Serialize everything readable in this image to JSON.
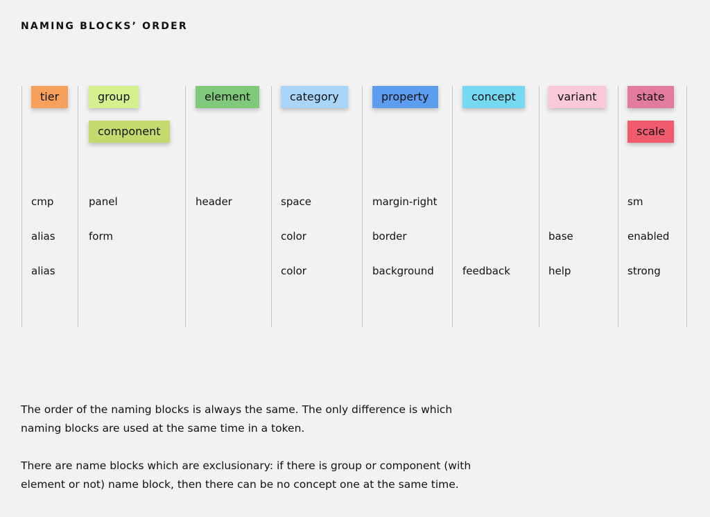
{
  "title": "NAMING BLOCKS’ ORDER",
  "columns": [
    {
      "tags": [
        {
          "label": "tier",
          "color": "#f7a05c"
        }
      ],
      "cells": [
        "cmp",
        "alias",
        "alias"
      ]
    },
    {
      "tags": [
        {
          "label": "group",
          "color": "#d4f08f"
        },
        {
          "label": "component",
          "color": "#c3da6c"
        }
      ],
      "cells": [
        "panel",
        "form",
        null
      ]
    },
    {
      "tags": [
        {
          "label": "element",
          "color": "#80c97b"
        }
      ],
      "cells": [
        "header",
        null,
        null
      ]
    },
    {
      "tags": [
        {
          "label": "category",
          "color": "#a8d5f8"
        }
      ],
      "cells": [
        "space",
        "color",
        "color"
      ]
    },
    {
      "tags": [
        {
          "label": "property",
          "color": "#5c9def"
        }
      ],
      "cells": [
        "margin-right",
        "border",
        "background"
      ]
    },
    {
      "tags": [
        {
          "label": "concept",
          "color": "#74d9f1"
        }
      ],
      "cells": [
        null,
        null,
        "feedback"
      ]
    },
    {
      "tags": [
        {
          "label": "variant",
          "color": "#f9c9d9"
        }
      ],
      "cells": [
        null,
        "base",
        "help"
      ]
    },
    {
      "tags": [
        {
          "label": "state",
          "color": "#e37ba1"
        },
        {
          "label": "scale",
          "color": "#f05b6f"
        }
      ],
      "cells": [
        "sm",
        "enabled",
        "strong"
      ]
    }
  ],
  "paragraphs": [
    [
      "The order of the naming blocks is always the same. The only difference is which",
      "naming blocks are used at the same time in a token."
    ],
    [
      "There are name blocks which are exclusionary: if there is group or component (with",
      "element or not) name block, then there can be no concept one at the same time."
    ]
  ]
}
